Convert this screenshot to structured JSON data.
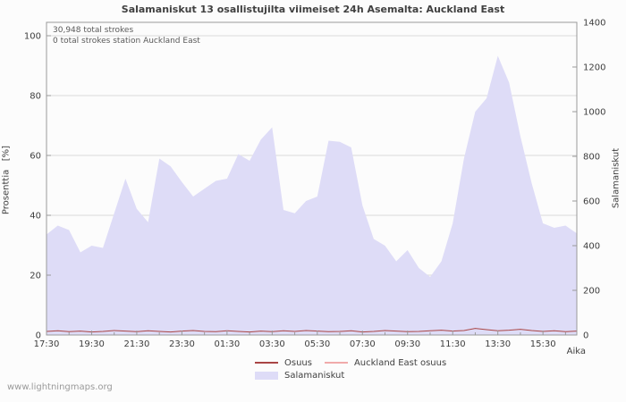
{
  "title": "Salamaniskut 13 osallistujilta viimeiset 24h Asemalta: Auckland East",
  "watermark": "www.lightningmaps.org",
  "annotations": {
    "line1": "30,948 total strokes",
    "line2": "0 total strokes station Auckland East"
  },
  "axes": {
    "left_label": "Prosenttia   [%]",
    "right_label": "Salamaniskut",
    "x_label": "Aika"
  },
  "legend": [
    {
      "label": "Osuus",
      "type": "line",
      "color": "#a94545"
    },
    {
      "label": "Auckland East osuus",
      "type": "line",
      "color": "#f0aaaa"
    },
    {
      "label": "Salamaniskut",
      "type": "area",
      "color": "#dedcf7"
    }
  ],
  "chart_data": {
    "type": "area",
    "title": "Salamaniskut 13 osallistujilta viimeiset 24h Asemalta: Auckland East",
    "x_unit": "hours_since_start",
    "x_start_label": "17:30",
    "x_domain": [
      0,
      23.5
    ],
    "t_start": 0,
    "t_step": 0.5,
    "x_ticks": [
      {
        "t": 0,
        "label": "17:30"
      },
      {
        "t": 2,
        "label": "19:30"
      },
      {
        "t": 4,
        "label": "21:30"
      },
      {
        "t": 6,
        "label": "23:30"
      },
      {
        "t": 8,
        "label": "01:30"
      },
      {
        "t": 10,
        "label": "03:30"
      },
      {
        "t": 12,
        "label": "05:30"
      },
      {
        "t": 14,
        "label": "07:30"
      },
      {
        "t": 16,
        "label": "09:30"
      },
      {
        "t": 18,
        "label": "11:30"
      },
      {
        "t": 20,
        "label": "13:30"
      },
      {
        "t": 22,
        "label": "15:30"
      }
    ],
    "left_axis": {
      "label": "Prosenttia [%]",
      "min": 0,
      "max": 100,
      "ticks": [
        0,
        20,
        40,
        60,
        80,
        100
      ]
    },
    "right_axis": {
      "label": "Salamaniskut",
      "min": 0,
      "max": 1400,
      "ticks": [
        0,
        200,
        400,
        600,
        800,
        1000,
        1200,
        1400
      ]
    },
    "grid": true,
    "legend_position": "bottom",
    "series": [
      {
        "name": "Salamaniskut",
        "axis": "right",
        "type": "area",
        "color": "#dedcf7",
        "values": [
          450,
          490,
          470,
          370,
          400,
          390,
          545,
          700,
          565,
          505,
          790,
          755,
          685,
          620,
          655,
          690,
          700,
          810,
          780,
          875,
          930,
          560,
          545,
          600,
          620,
          870,
          865,
          840,
          580,
          430,
          400,
          330,
          380,
          300,
          260,
          330,
          500,
          790,
          1000,
          1060,
          1250,
          1130,
          890,
          680,
          500,
          480,
          490,
          455
        ]
      },
      {
        "name": "Osuus",
        "axis": "left",
        "type": "line",
        "color": "#a94545",
        "values": [
          1.2,
          1.4,
          1.1,
          1.3,
          1.0,
          1.2,
          1.5,
          1.3,
          1.1,
          1.4,
          1.2,
          1.0,
          1.3,
          1.5,
          1.2,
          1.1,
          1.4,
          1.2,
          1.0,
          1.3,
          1.1,
          1.4,
          1.2,
          1.5,
          1.3,
          1.1,
          1.2,
          1.4,
          1.0,
          1.2,
          1.5,
          1.3,
          1.1,
          1.2,
          1.4,
          1.6,
          1.3,
          1.5,
          2.2,
          1.8,
          1.4,
          1.6,
          1.9,
          1.5,
          1.2,
          1.4,
          1.1,
          1.3
        ]
      },
      {
        "name": "Auckland East osuus",
        "axis": "left",
        "type": "line",
        "color": "#f0aaaa",
        "values": [
          0,
          0,
          0,
          0,
          0,
          0,
          0,
          0,
          0,
          0,
          0,
          0,
          0,
          0,
          0,
          0,
          0,
          0,
          0,
          0,
          0,
          0,
          0,
          0,
          0,
          0,
          0,
          0,
          0,
          0,
          0,
          0,
          0,
          0,
          0,
          0,
          0,
          0,
          0,
          0,
          0,
          0,
          0,
          0,
          0,
          0,
          0,
          0
        ]
      }
    ],
    "totals": {
      "total_strokes": "30,948",
      "station_strokes": "0",
      "station": "Auckland East",
      "participants": 13
    }
  }
}
